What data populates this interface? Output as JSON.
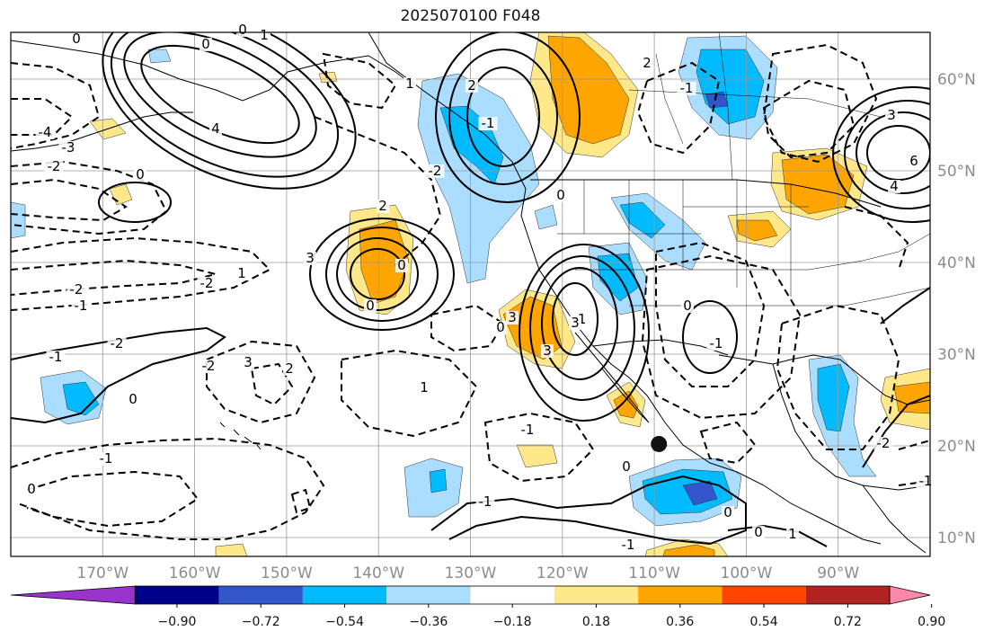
{
  "title": "2025070100 F048",
  "map": {
    "longitude_ticks": [
      "170°W",
      "160°W",
      "150°W",
      "140°W",
      "130°W",
      "120°W",
      "110°W",
      "100°W",
      "90°W"
    ],
    "latitude_ticks": [
      "60°N",
      "50°N",
      "40°N",
      "30°N",
      "20°N",
      "10°N"
    ],
    "grid": true,
    "marker": {
      "name": "black-dot",
      "lon": -109.5,
      "lat": 20.2
    },
    "contour_labels": [
      "0",
      "-2",
      "-4",
      "-3",
      "-2",
      "0",
      "2",
      "-2",
      "-1",
      "-1",
      "-2",
      "0",
      "-1",
      "0",
      "2",
      "3",
      "0",
      "3",
      "2",
      "0",
      "-1",
      "0",
      "1",
      "-1",
      "0",
      "3",
      "3",
      "0",
      "3",
      "-1",
      "-1",
      "0",
      "-1",
      "0",
      "1",
      "-1",
      "-2",
      "4",
      "3",
      "6",
      "4",
      "0",
      "-2",
      "1",
      "0",
      "1",
      "0",
      "2",
      "-1",
      "-2",
      "1",
      "-1"
    ]
  },
  "colorbar": {
    "tick_labels": [
      "−0.90",
      "−0.72",
      "−0.54",
      "−0.36",
      "−0.18",
      "0.18",
      "0.36",
      "0.54",
      "0.72",
      "0.90"
    ],
    "colors": [
      "#9933cc",
      "#000088",
      "#3355cc",
      "#00bbff",
      "#aaddff",
      "#ffffff",
      "#ffe88a",
      "#ffa500",
      "#ff4400",
      "#b22222",
      "#ff88aa"
    ]
  }
}
